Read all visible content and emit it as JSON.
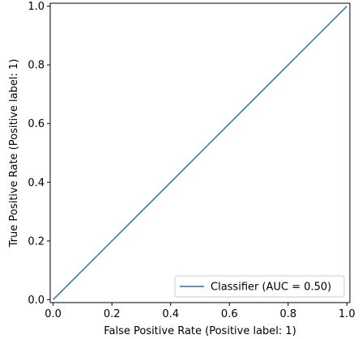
{
  "chart_data": {
    "type": "line",
    "title": "",
    "xlabel": "False Positive Rate (Positive label: 1)",
    "ylabel": "True Positive Rate (Positive label: 1)",
    "xlim": [
      -0.01,
      1.01
    ],
    "ylim": [
      -0.01,
      1.01
    ],
    "x_ticks": [
      0.0,
      0.2,
      0.4,
      0.6,
      0.8,
      1.0
    ],
    "y_ticks": [
      0.0,
      0.2,
      0.4,
      0.6,
      0.8,
      1.0
    ],
    "x_tick_labels": [
      "0.0",
      "0.2",
      "0.4",
      "0.6",
      "0.8",
      "1.0"
    ],
    "y_tick_labels": [
      "0.0",
      "0.2",
      "0.4",
      "0.6",
      "0.8",
      "1.0"
    ],
    "grid": false,
    "legend_position": "lower-right",
    "series": [
      {
        "name": "Classifier (AUC = 0.50)",
        "color": "#1f77b4",
        "x": [
          0.0,
          1.0
        ],
        "y": [
          0.0,
          1.0
        ]
      }
    ]
  }
}
